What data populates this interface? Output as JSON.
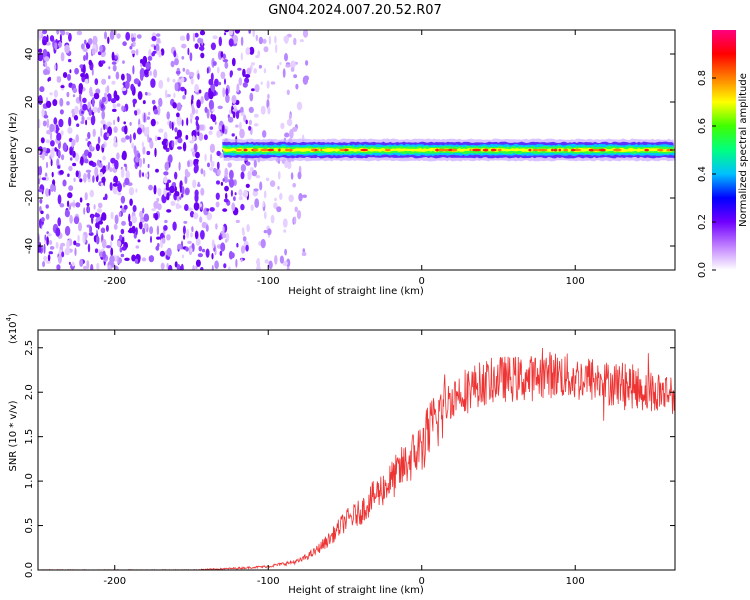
{
  "title": "GN04.2024.007.20.52.R07",
  "chart_data": [
    {
      "type": "heatmap",
      "xlabel": "Height of straight line (km)",
      "ylabel": "Frequency (Hz)",
      "xlim": [
        -250,
        165
      ],
      "ylim": [
        -50,
        50
      ],
      "xticks": [
        -200,
        -100,
        0,
        100
      ],
      "yticks": [
        -40,
        -20,
        0,
        20,
        40
      ],
      "colorbar": {
        "label": "Normalized spectral amplitude",
        "range": [
          0,
          1
        ],
        "ticks": [
          "0.0",
          "0.2",
          "0.4",
          "0.6",
          "0.8"
        ],
        "colors": [
          "#ffffff",
          "#c080ff",
          "#7000ff",
          "#0000ff",
          "#00c0ff",
          "#00ff80",
          "#40ff00",
          "#ffff00",
          "#ff8000",
          "#ff0000",
          "#ff0080"
        ]
      },
      "features": {
        "noise_region_x": [
          -250,
          -110
        ],
        "signal_line_x": [
          -130,
          165
        ],
        "signal_line_frequency_hz": 0
      }
    },
    {
      "type": "line",
      "xlabel": "Height of straight line (km)",
      "ylabel": "SNR (10 * v/v)",
      "scale_label": "(x10",
      "scale_exponent": "4",
      "xlim": [
        -250,
        165
      ],
      "ylim": [
        0,
        2.7
      ],
      "xticks": [
        -200,
        -100,
        0,
        100
      ],
      "yticks": [
        "0.0",
        "0.5",
        "1.0",
        "1.5",
        "2.0",
        "2.5"
      ],
      "line_color": "#ee3333",
      "series": [
        {
          "x": [
            -250,
            -200,
            -150,
            -120,
            -100,
            -90,
            -80,
            -70,
            -60,
            -55,
            -50,
            -45,
            -40,
            -35,
            -30,
            -20,
            -10,
            0,
            10,
            15,
            20,
            30,
            40,
            50,
            60,
            70,
            80,
            90,
            100,
            110,
            120,
            130,
            140,
            150,
            165
          ],
          "y": [
            0.0,
            0.0,
            0.0,
            0.02,
            0.04,
            0.07,
            0.1,
            0.2,
            0.35,
            0.45,
            0.55,
            0.6,
            0.65,
            0.75,
            0.85,
            1.0,
            1.2,
            1.4,
            1.7,
            1.85,
            1.95,
            2.05,
            2.1,
            2.15,
            2.15,
            2.15,
            2.2,
            2.2,
            2.15,
            2.15,
            2.1,
            2.1,
            2.05,
            2.0,
            2.0
          ]
        }
      ]
    }
  ]
}
